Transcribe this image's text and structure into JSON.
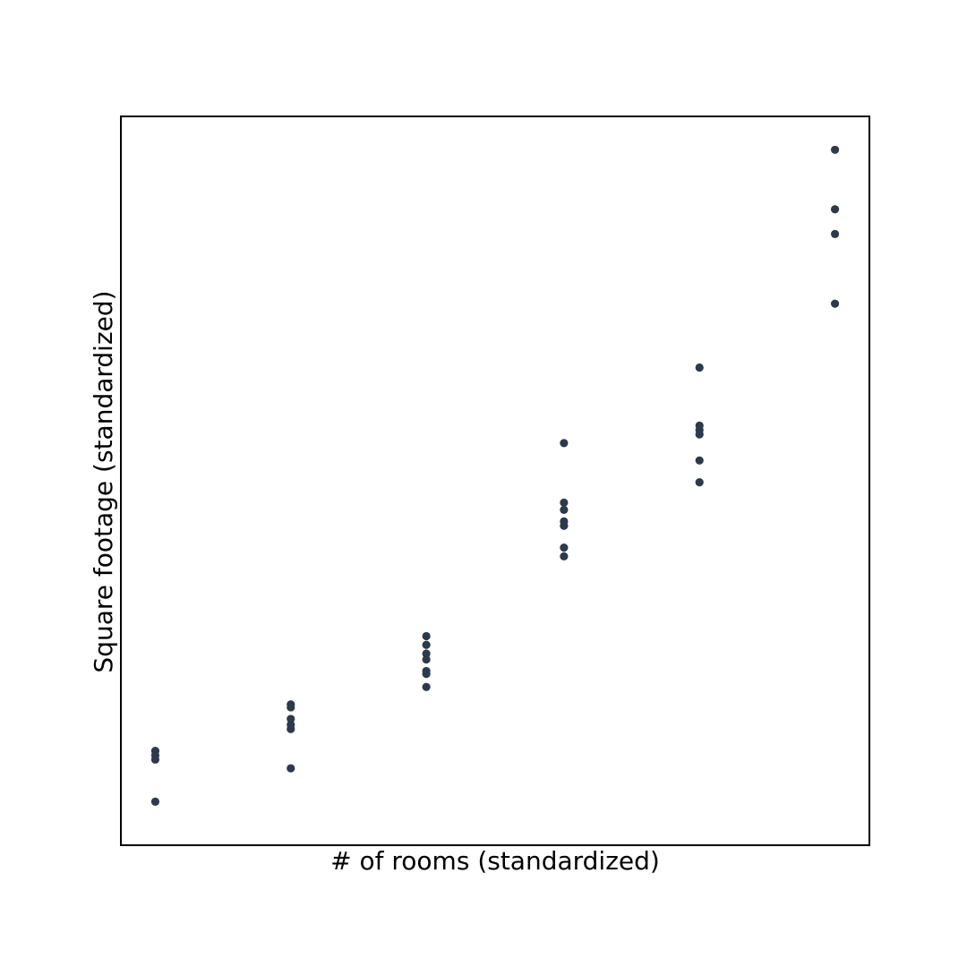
{
  "chart_data": {
    "type": "scatter",
    "title": "",
    "xlabel": "# of rooms (standardized)",
    "ylabel": "Square footage (standardized)",
    "xlim": [
      -1.74,
      1.74
    ],
    "ylim": [
      -2.3,
      2.72
    ],
    "grid": false,
    "ticks_visible": false,
    "marker_color": "#2d3a4a",
    "points": [
      {
        "x": -1.58,
        "y": -1.65
      },
      {
        "x": -1.58,
        "y": -1.68
      },
      {
        "x": -1.58,
        "y": -1.71
      },
      {
        "x": -1.58,
        "y": -2.0
      },
      {
        "x": -0.95,
        "y": -1.33
      },
      {
        "x": -0.95,
        "y": -1.35
      },
      {
        "x": -0.95,
        "y": -1.43
      },
      {
        "x": -0.95,
        "y": -1.47
      },
      {
        "x": -0.95,
        "y": -1.5
      },
      {
        "x": -0.95,
        "y": -1.77
      },
      {
        "x": -0.32,
        "y": -0.86
      },
      {
        "x": -0.32,
        "y": -0.92
      },
      {
        "x": -0.32,
        "y": -0.98
      },
      {
        "x": -0.32,
        "y": -1.02
      },
      {
        "x": -0.32,
        "y": -1.1
      },
      {
        "x": -0.32,
        "y": -1.12
      },
      {
        "x": -0.32,
        "y": -1.21
      },
      {
        "x": 0.32,
        "y": 0.47
      },
      {
        "x": 0.32,
        "y": 0.06
      },
      {
        "x": 0.32,
        "y": 0.01
      },
      {
        "x": 0.32,
        "y": -0.07
      },
      {
        "x": 0.32,
        "y": -0.1
      },
      {
        "x": 0.32,
        "y": -0.25
      },
      {
        "x": 0.32,
        "y": -0.31
      },
      {
        "x": 0.95,
        "y": 0.99
      },
      {
        "x": 0.95,
        "y": 0.59
      },
      {
        "x": 0.95,
        "y": 0.56
      },
      {
        "x": 0.95,
        "y": 0.53
      },
      {
        "x": 0.95,
        "y": 0.35
      },
      {
        "x": 0.95,
        "y": 0.2
      },
      {
        "x": 1.58,
        "y": 2.49
      },
      {
        "x": 1.58,
        "y": 2.08
      },
      {
        "x": 1.58,
        "y": 1.91
      },
      {
        "x": 1.58,
        "y": 1.43
      }
    ]
  }
}
